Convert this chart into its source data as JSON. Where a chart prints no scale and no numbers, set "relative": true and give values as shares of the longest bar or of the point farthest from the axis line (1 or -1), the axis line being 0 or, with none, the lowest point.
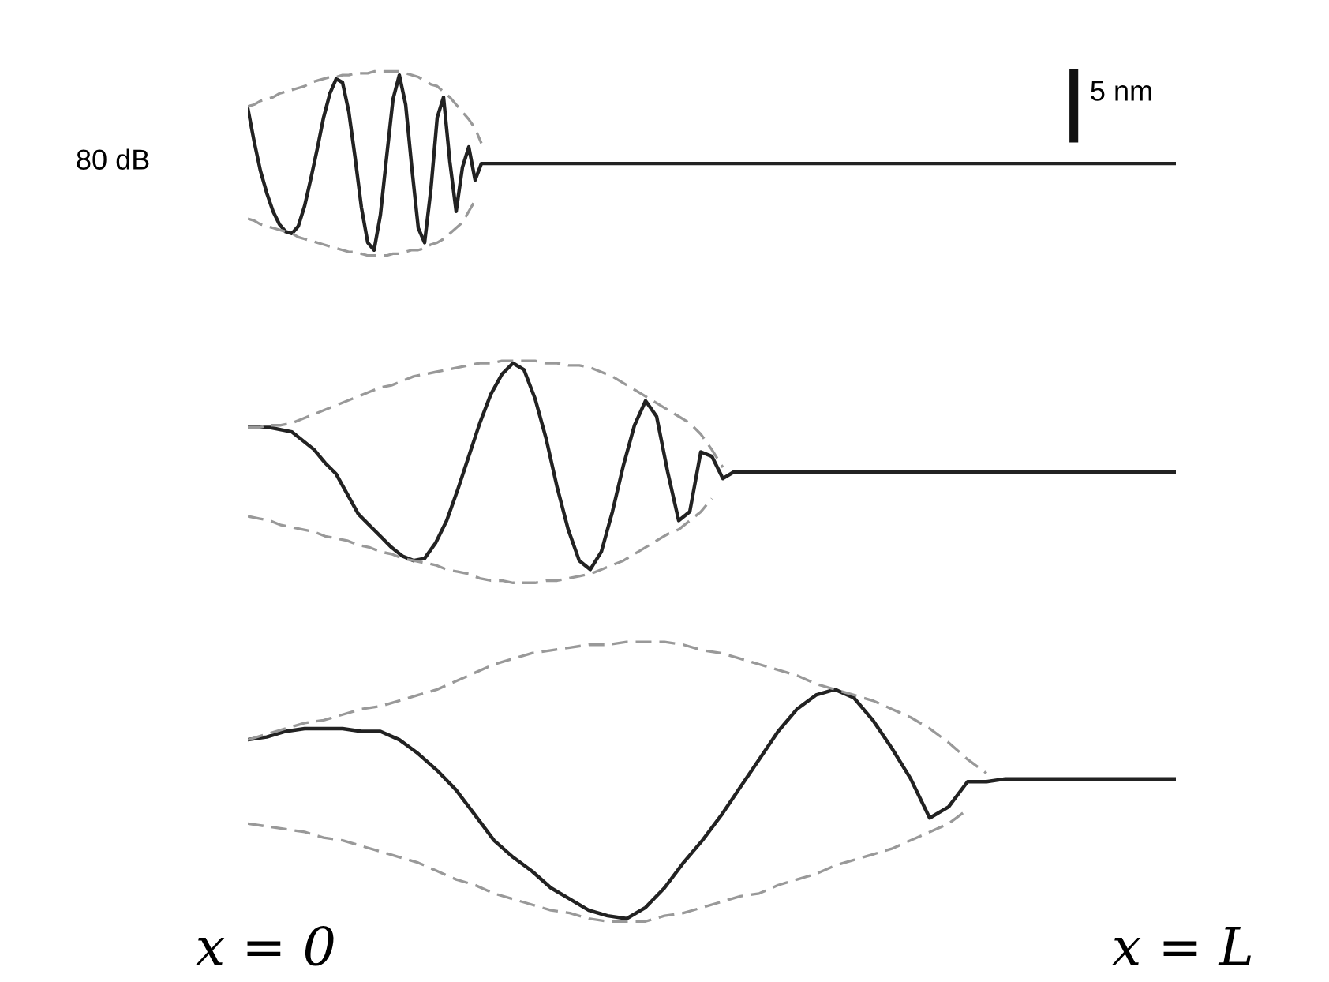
{
  "chart_data": [
    {
      "type": "line",
      "relative": true,
      "annotations": [
        "80 dB",
        "5 nm"
      ],
      "categories": [
        null,
        null,
        null,
        null,
        null,
        null,
        null,
        null,
        null,
        null,
        null,
        null,
        null,
        null,
        null,
        null,
        null,
        null,
        null,
        null,
        null,
        null,
        null,
        null,
        null,
        null,
        null,
        null,
        null,
        null,
        null,
        null,
        null,
        null,
        null,
        null,
        null,
        null,
        null,
        null,
        null,
        null,
        null,
        null,
        null,
        null,
        null,
        null,
        null,
        null,
        null,
        null,
        null,
        null,
        null,
        null,
        null,
        null,
        null,
        null,
        null,
        null,
        null,
        null,
        null,
        null,
        null,
        null,
        null,
        null,
        null,
        null,
        null,
        null,
        null,
        null,
        null,
        null,
        null,
        null,
        null,
        null,
        null,
        null,
        null,
        null,
        null,
        null,
        null,
        null,
        null,
        null,
        null,
        null,
        null,
        null,
        null,
        null,
        null,
        null,
        null,
        null,
        null,
        null,
        null,
        null,
        null,
        null,
        null,
        null,
        null,
        null,
        null,
        null,
        null,
        null,
        null,
        null,
        null,
        null,
        null,
        null,
        null,
        null,
        null,
        null,
        null,
        null,
        null,
        null,
        null,
        null,
        null,
        null,
        null,
        null,
        null,
        null,
        null,
        null,
        null,
        null,
        null,
        null,
        null,
        null,
        null,
        null
      ],
      "series": [
        {
          "color": "#222222",
          "line_style": "solid",
          "values": [
            0.8,
            0.62,
            0.46,
            0.34,
            0.24,
            0.17,
            0.13,
            0.12,
            0.16,
            0.27,
            0.42,
            0.58,
            0.75,
            0.88,
            0.96,
            0.94,
            0.78,
            0.53,
            0.26,
            0.07,
            0.03,
            0.22,
            0.54,
            0.85,
            0.98,
            0.82,
            0.47,
            0.15,
            0.07,
            0.36,
            0.75,
            0.86,
            0.51,
            0.24,
            0.48,
            0.59,
            0.41,
            0.5,
            0.5,
            0.5,
            0.5,
            0.5,
            0.5,
            0.5,
            0.5,
            0.5,
            0.5,
            0.5,
            0.5,
            0.5,
            0.5,
            0.5,
            0.5,
            0.5,
            0.5,
            0.5,
            0.5,
            0.5,
            0.5,
            0.5,
            0.5,
            0.5,
            0.5,
            0.5,
            0.5,
            0.5,
            0.5,
            0.5,
            0.5,
            0.5,
            0.5,
            0.5,
            0.5,
            0.5,
            0.5,
            0.5,
            0.5,
            0.5,
            0.5,
            0.5,
            0.5,
            0.5,
            0.5,
            0.5,
            0.5,
            0.5,
            0.5,
            0.5,
            0.5,
            0.5,
            0.5,
            0.5,
            0.5,
            0.5,
            0.5,
            0.5,
            0.5,
            0.5,
            0.5,
            0.5,
            0.5,
            0.5,
            0.5,
            0.5,
            0.5,
            0.5,
            0.5,
            0.5,
            0.5,
            0.5,
            0.5,
            0.5,
            0.5,
            0.5,
            0.5,
            0.5,
            0.5,
            0.5,
            0.5,
            0.5,
            0.5,
            0.5,
            0.5,
            0.5,
            0.5,
            0.5,
            0.5,
            0.5,
            0.5,
            0.5,
            0.5,
            0.5,
            0.5,
            0.5,
            0.5,
            0.5,
            0.5,
            0.5,
            0.5,
            0.5,
            0.5,
            0.5,
            0.5,
            0.5,
            0.5,
            0.5,
            0.5,
            0.5
          ]
        },
        {
          "color": "#999999",
          "line_style": "dashed",
          "values": [
            0.81,
            0.82,
            0.84,
            0.85,
            0.86,
            0.88,
            0.89,
            0.9,
            0.91,
            0.92,
            0.94,
            0.95,
            0.96,
            0.97,
            0.97,
            0.98,
            0.98,
            0.99,
            0.99,
            0.99,
            1.0,
            1.0,
            1.0,
            1.0,
            1.0,
            0.99,
            0.98,
            0.97,
            0.95,
            0.93,
            0.92,
            0.89,
            0.86,
            0.82,
            0.78,
            0.74,
            0.69,
            0.61,
            null,
            null,
            null,
            null,
            null,
            null,
            null,
            null,
            null,
            null,
            null,
            null,
            null,
            null,
            null,
            null,
            null,
            null,
            null,
            null,
            null,
            null,
            null,
            null,
            null,
            null,
            null,
            null,
            null,
            null,
            null,
            null,
            null,
            null,
            null,
            null,
            null,
            null,
            null,
            null,
            null,
            null,
            null,
            null,
            null,
            null,
            null,
            null,
            null,
            null,
            null,
            null,
            null,
            null,
            null,
            null,
            null,
            null,
            null,
            null,
            null,
            null,
            null,
            null,
            null,
            null,
            null,
            null,
            null,
            null,
            null,
            null,
            null,
            null,
            null,
            null,
            null,
            null,
            null,
            null,
            null,
            null,
            null,
            null,
            null,
            null,
            null,
            null,
            null,
            null,
            null,
            null,
            null,
            null,
            null,
            null,
            null,
            null,
            null,
            null,
            null,
            null,
            null,
            null,
            null,
            null,
            null,
            null,
            null,
            null
          ]
        },
        {
          "color": "#999999",
          "line_style": "dashed",
          "values": [
            0.2,
            0.19,
            0.17,
            0.16,
            0.15,
            0.14,
            0.13,
            0.12,
            0.1,
            0.09,
            0.08,
            0.07,
            0.06,
            0.05,
            0.04,
            0.03,
            0.02,
            0.02,
            0.01,
            0,
            0,
            0,
            0,
            0.01,
            0.01,
            0.02,
            0.03,
            0.03,
            0.04,
            0.06,
            0.07,
            0.09,
            0.12,
            0.15,
            0.18,
            0.24,
            0.3,
            null,
            null,
            null,
            null,
            null,
            null,
            null,
            null,
            null,
            null,
            null,
            null,
            null,
            null,
            null,
            null,
            null,
            null,
            null,
            null,
            null,
            null,
            null,
            null,
            null,
            null,
            null,
            null,
            null,
            null,
            null,
            null,
            null,
            null,
            null,
            null,
            null,
            null,
            null,
            null,
            null,
            null,
            null,
            null,
            null,
            null,
            null,
            null,
            null,
            null,
            null,
            null,
            null,
            null,
            null,
            null,
            null,
            null,
            null,
            null,
            null,
            null,
            null,
            null,
            null,
            null,
            null,
            null,
            null,
            null,
            null,
            null,
            null,
            null,
            null,
            null,
            null,
            null,
            null,
            null,
            null,
            null,
            null,
            null,
            null,
            null,
            null,
            null,
            null,
            null,
            null,
            null,
            null,
            null,
            null,
            null,
            null,
            null,
            null,
            null,
            null,
            null,
            null,
            null,
            null,
            null,
            null,
            null,
            null,
            null,
            null
          ]
        }
      ]
    },
    {
      "type": "line",
      "relative": true,
      "categories": [
        null,
        null,
        null,
        null,
        null,
        null,
        null,
        null,
        null,
        null,
        null,
        null,
        null,
        null,
        null,
        null,
        null,
        null,
        null,
        null,
        null,
        null,
        null,
        null,
        null,
        null,
        null,
        null,
        null,
        null,
        null,
        null,
        null,
        null,
        null,
        null,
        null,
        null,
        null,
        null,
        null,
        null,
        null,
        null,
        null,
        null,
        null,
        null,
        null,
        null,
        null,
        null,
        null,
        null,
        null,
        null,
        null,
        null,
        null,
        null,
        null,
        null,
        null,
        null,
        null,
        null,
        null,
        null,
        null,
        null,
        null,
        null,
        null,
        null,
        null,
        null,
        null,
        null,
        null,
        null,
        null,
        null,
        null,
        null,
        null
      ],
      "series": [
        {
          "color": "#222222",
          "line_style": "solid",
          "values": [
            0.7,
            0.7,
            0.7,
            0.69,
            0.68,
            0.64,
            0.6,
            0.54,
            0.49,
            0.4,
            0.31,
            0.26,
            0.21,
            0.16,
            0.12,
            0.1,
            0.11,
            0.18,
            0.28,
            0.42,
            0.57,
            0.72,
            0.85,
            0.94,
            0.99,
            0.96,
            0.83,
            0.65,
            0.43,
            0.24,
            0.1,
            0.06,
            0.14,
            0.32,
            0.53,
            0.71,
            0.82,
            0.75,
            0.5,
            0.28,
            0.32,
            0.59,
            0.57,
            0.47,
            0.5,
            0.5,
            0.5,
            0.5,
            0.5,
            0.5,
            0.5,
            0.5,
            0.5,
            0.5,
            0.5,
            0.5,
            0.5,
            0.5,
            0.5,
            0.5,
            0.5,
            0.5,
            0.5,
            0.5,
            0.5,
            0.5,
            0.5,
            0.5,
            0.5,
            0.5,
            0.5,
            0.5,
            0.5,
            0.5,
            0.5,
            0.5,
            0.5,
            0.5,
            0.5,
            0.5,
            0.5,
            0.5,
            0.5,
            0.5,
            0.5
          ]
        },
        {
          "color": "#999999",
          "line_style": "dashed",
          "values": [
            0.7,
            0.7,
            0.71,
            0.71,
            0.72,
            0.74,
            0.76,
            0.78,
            0.8,
            0.82,
            0.84,
            0.86,
            0.88,
            0.89,
            0.91,
            0.93,
            0.94,
            0.95,
            0.96,
            0.97,
            0.98,
            0.99,
            0.99,
            1.0,
            1.0,
            1.0,
            1.0,
            0.99,
            0.99,
            0.98,
            0.98,
            0.97,
            0.95,
            0.93,
            0.9,
            0.87,
            0.84,
            0.81,
            0.78,
            0.75,
            0.72,
            0.67,
            0.6,
            0.52,
            null,
            null,
            null,
            null,
            null,
            null,
            null,
            null,
            null,
            null,
            null,
            null,
            null,
            null,
            null,
            null,
            null,
            null,
            null,
            null,
            null,
            null,
            null,
            null,
            null,
            null,
            null,
            null,
            null,
            null,
            null,
            null,
            null,
            null,
            null,
            null,
            null,
            null,
            null,
            null,
            null
          ]
        },
        {
          "color": "#999999",
          "line_style": "dashed",
          "values": [
            0.3,
            0.29,
            0.28,
            0.26,
            0.25,
            0.24,
            0.23,
            0.21,
            0.2,
            0.19,
            0.17,
            0.16,
            0.14,
            0.13,
            0.11,
            0.1,
            0.09,
            0.08,
            0.06,
            0.05,
            0.04,
            0.02,
            0.01,
            0.01,
            0,
            0,
            0,
            0.01,
            0.01,
            0.02,
            0.03,
            0.04,
            0.06,
            0.08,
            0.1,
            0.13,
            0.16,
            0.19,
            0.22,
            0.24,
            0.28,
            0.32,
            0.38,
            null,
            null,
            null,
            null,
            null,
            null,
            null,
            null,
            null,
            null,
            null,
            null,
            null,
            null,
            null,
            null,
            null,
            null,
            null,
            null,
            null,
            null,
            null,
            null,
            null,
            null,
            null,
            null,
            null,
            null,
            null,
            null,
            null,
            null,
            null,
            null,
            null,
            null,
            null,
            null,
            null,
            null
          ]
        }
      ]
    },
    {
      "type": "line",
      "relative": true,
      "annotations": [
        "x = 0",
        "x = L"
      ],
      "categories": [
        null,
        null,
        null,
        null,
        null,
        null,
        null,
        null,
        null,
        null,
        null,
        null,
        null,
        null,
        null,
        null,
        null,
        null,
        null,
        null,
        null,
        null,
        null,
        null,
        null,
        null,
        null,
        null,
        null,
        null,
        null,
        null,
        null,
        null,
        null,
        null,
        null,
        null,
        null,
        null,
        null,
        null,
        null,
        null,
        null,
        null,
        null,
        null,
        null,
        null
      ],
      "series": [
        {
          "color": "#222222",
          "line_style": "solid",
          "values": [
            0.65,
            0.66,
            0.68,
            0.69,
            0.69,
            0.69,
            0.68,
            0.68,
            0.65,
            0.6,
            0.54,
            0.47,
            0.38,
            0.29,
            0.23,
            0.18,
            0.12,
            0.08,
            0.04,
            0.02,
            0.01,
            0.05,
            0.12,
            0.21,
            0.29,
            0.38,
            0.48,
            0.58,
            0.68,
            0.76,
            0.81,
            0.83,
            0.8,
            0.72,
            0.62,
            0.51,
            0.37,
            0.41,
            0.5,
            0.5,
            0.51,
            0.51,
            0.51,
            0.51,
            0.51,
            0.51,
            0.51,
            0.51,
            0.51,
            0.51
          ]
        },
        {
          "color": "#999999",
          "line_style": "dashed",
          "values": [
            0.65,
            0.67,
            0.69,
            0.71,
            0.72,
            0.74,
            0.76,
            0.77,
            0.79,
            0.81,
            0.83,
            0.86,
            0.89,
            0.92,
            0.94,
            0.96,
            0.97,
            0.98,
            0.99,
            0.99,
            1.0,
            1.0,
            1.0,
            0.99,
            0.97,
            0.96,
            0.94,
            0.92,
            0.9,
            0.88,
            0.85,
            0.83,
            0.81,
            0.79,
            0.76,
            0.73,
            0.69,
            0.64,
            0.58,
            0.53,
            null,
            null,
            null,
            null,
            null,
            null,
            null,
            null,
            null,
            null
          ]
        },
        {
          "color": "#999999",
          "line_style": "dashed",
          "values": [
            0.35,
            0.34,
            0.33,
            0.32,
            0.3,
            0.29,
            0.27,
            0.25,
            0.23,
            0.21,
            0.18,
            0.15,
            0.13,
            0.1,
            0.08,
            0.06,
            0.04,
            0.03,
            0.01,
            0.0,
            0.0,
            0.0,
            0.02,
            0.03,
            0.05,
            0.07,
            0.09,
            0.1,
            0.13,
            0.15,
            0.17,
            0.2,
            0.22,
            0.24,
            0.26,
            0.29,
            0.32,
            0.35,
            0.4,
            null,
            null,
            null,
            null,
            null,
            null,
            null,
            null,
            null,
            null,
            null
          ]
        }
      ]
    }
  ]
}
